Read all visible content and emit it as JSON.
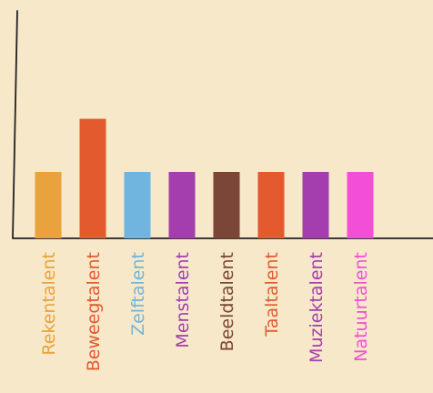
{
  "chart_data": {
    "type": "bar",
    "title": "",
    "xlabel": "",
    "ylabel": "",
    "grid": false,
    "legend": "none",
    "ylim": [
      0,
      2.5
    ],
    "categories": [
      "Rekentalent",
      "Beweegtalent",
      "Zelftalent",
      "Menstalent",
      "Beeldtalent",
      "Taaltalent",
      "Muziektalent",
      "Natuurtalent"
    ],
    "values": [
      1,
      1.8,
      1,
      1,
      1,
      1,
      1,
      1
    ],
    "colors": [
      "#e9a23c",
      "#e35a2f",
      "#6fb5e0",
      "#a43eae",
      "#7b4537",
      "#e35a2f",
      "#a43eae",
      "#f24fd6"
    ]
  }
}
